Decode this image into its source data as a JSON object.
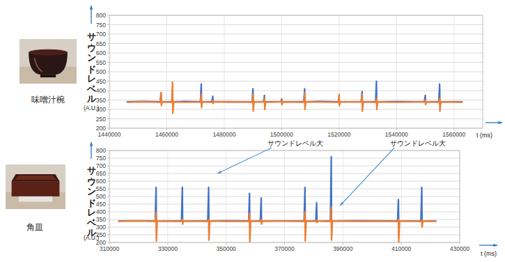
{
  "chart_data": [
    {
      "type": "line",
      "title": "味噌汁椀",
      "y_label": "サウンドレベル",
      "y_unit": "(A.U.)",
      "x_label": "t (ms)",
      "grid": true,
      "xlim": [
        1440000,
        1570000
      ],
      "xticks": [
        1440000,
        1460000,
        1480000,
        1500000,
        1520000,
        1540000,
        1560000
      ],
      "ylim": [
        200,
        800
      ],
      "yticks": [
        200,
        250,
        300,
        350,
        400,
        450,
        500,
        550,
        600,
        650,
        700,
        750,
        800
      ],
      "x": [
        1446000,
        1452000,
        1457700,
        1458000,
        1458100,
        1458400,
        1461700,
        1462000,
        1462100,
        1462400,
        1466000,
        1471700,
        1472000,
        1472100,
        1472400,
        1475700,
        1476000,
        1476100,
        1476400,
        1482000,
        1489700,
        1490000,
        1490100,
        1490400,
        1493700,
        1494000,
        1494100,
        1494400,
        1499700,
        1500000,
        1500100,
        1500400,
        1507700,
        1508000,
        1508100,
        1508400,
        1513000,
        1519700,
        1520000,
        1520100,
        1520400,
        1527700,
        1528000,
        1528100,
        1528400,
        1532700,
        1533000,
        1533100,
        1533400,
        1540000,
        1549700,
        1550000,
        1550100,
        1550400,
        1554700,
        1555000,
        1555100,
        1555400,
        1563000
      ],
      "series": [
        {
          "color": "#4472c4",
          "values": [
            340,
            342,
            340,
            385,
            338,
            340,
            340,
            345,
            335,
            340,
            342,
            340,
            435,
            335,
            340,
            340,
            370,
            338,
            341,
            339,
            340,
            410,
            330,
            340,
            340,
            375,
            335,
            340,
            341,
            355,
            335,
            340,
            340,
            410,
            332,
            340,
            342,
            340,
            360,
            330,
            340,
            340,
            395,
            335,
            340,
            340,
            450,
            330,
            340,
            341,
            340,
            375,
            337,
            340,
            340,
            435,
            330,
            340,
            340
          ]
        },
        {
          "color": "#ed7d31",
          "values": [
            338,
            340,
            338,
            390,
            320,
            340,
            338,
            445,
            280,
            340,
            338,
            339,
            380,
            310,
            340,
            338,
            345,
            330,
            340,
            341,
            338,
            380,
            290,
            340,
            340,
            360,
            300,
            338,
            340,
            350,
            325,
            340,
            338,
            390,
            300,
            340,
            339,
            338,
            380,
            320,
            340,
            340,
            380,
            290,
            340,
            338,
            360,
            300,
            340,
            338,
            340,
            350,
            325,
            340,
            338,
            360,
            290,
            340,
            338
          ]
        }
      ]
    },
    {
      "type": "line",
      "title": "角皿",
      "y_label": "サウンドレベル",
      "y_unit": "(A.U.)",
      "x_label": "t (ms)",
      "grid": true,
      "xlim": [
        310000,
        430000
      ],
      "xticks": [
        310000,
        330000,
        350000,
        370000,
        390000,
        410000,
        430000
      ],
      "ylim": [
        200,
        800
      ],
      "yticks": [
        200,
        250,
        300,
        350,
        400,
        450,
        500,
        550,
        600,
        650,
        700,
        750,
        800
      ],
      "annotations": [
        {
          "text": "サウンドレベル大",
          "x": 347000,
          "y": 650
        },
        {
          "text": "サウンドレベル大",
          "x": 389000,
          "y": 440
        }
      ],
      "x": [
        313000,
        319000,
        325700,
        326000,
        326100,
        326400,
        334700,
        335000,
        335100,
        335400,
        343700,
        344000,
        344100,
        344400,
        350000,
        357700,
        358000,
        358100,
        358400,
        361700,
        362000,
        362100,
        362400,
        369000,
        376700,
        377000,
        377100,
        377400,
        380700,
        381000,
        381100,
        381400,
        385700,
        386000,
        386100,
        386400,
        395000,
        408700,
        409000,
        409100,
        409400,
        416700,
        417000,
        417100,
        417400,
        422000
      ],
      "series": [
        {
          "color": "#4472c4",
          "values": [
            340,
            342,
            340,
            560,
            330,
            340,
            340,
            560,
            330,
            340,
            340,
            560,
            330,
            340,
            342,
            340,
            520,
            330,
            340,
            340,
            490,
            335,
            340,
            341,
            340,
            560,
            330,
            340,
            340,
            460,
            335,
            340,
            340,
            760,
            330,
            340,
            342,
            340,
            480,
            335,
            340,
            340,
            560,
            330,
            340,
            340
          ]
        },
        {
          "color": "#ed7d31",
          "values": [
            338,
            340,
            338,
            400,
            210,
            340,
            338,
            350,
            320,
            340,
            338,
            350,
            215,
            340,
            338,
            338,
            390,
            200,
            340,
            338,
            350,
            320,
            340,
            339,
            338,
            400,
            210,
            340,
            338,
            345,
            330,
            340,
            338,
            430,
            215,
            340,
            338,
            338,
            350,
            200,
            340,
            338,
            345,
            300,
            340,
            338
          ]
        }
      ]
    }
  ]
}
